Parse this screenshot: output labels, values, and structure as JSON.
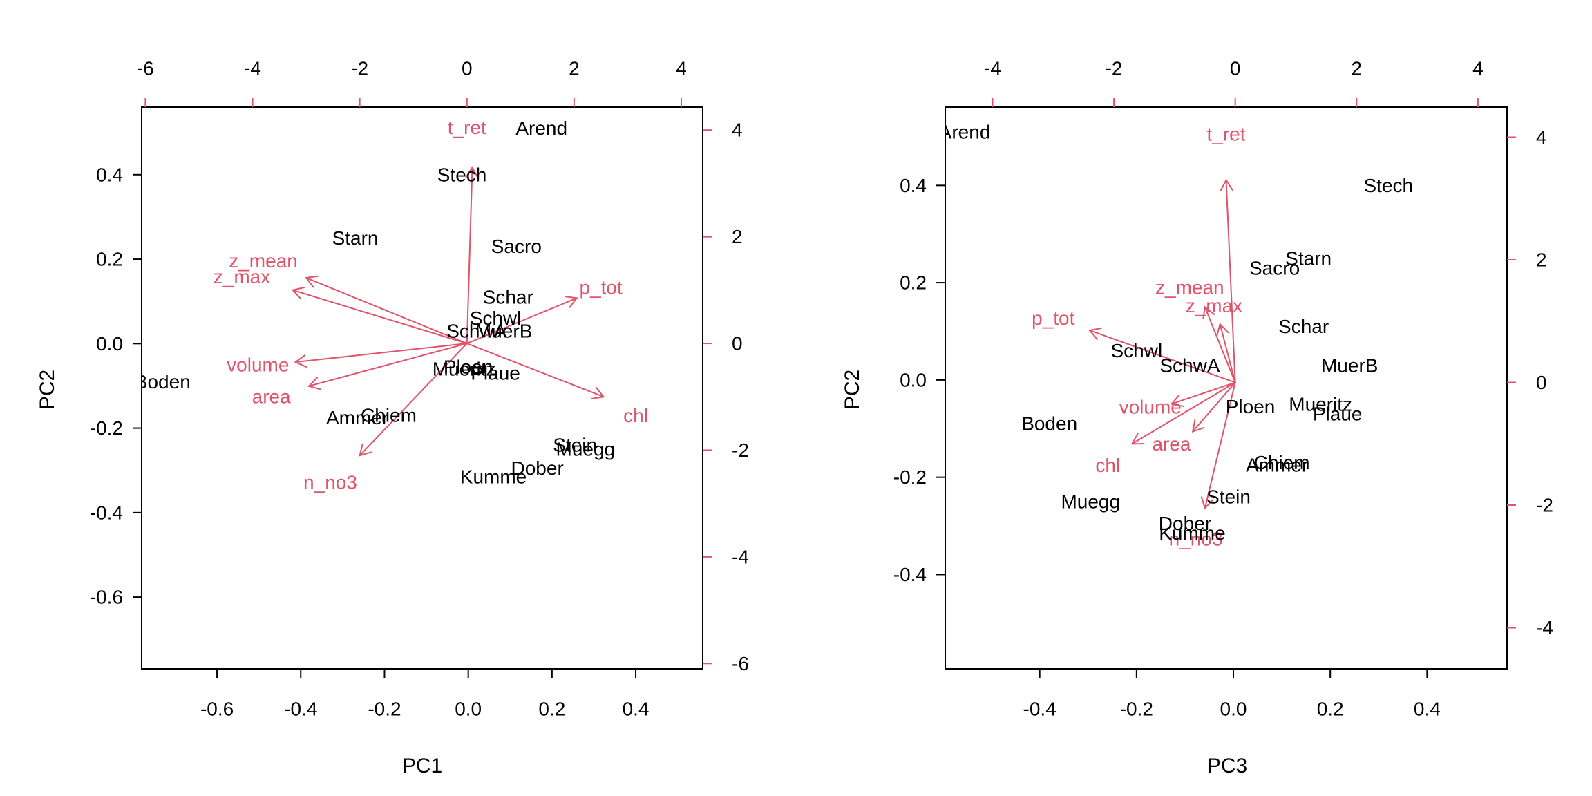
{
  "chart_data": [
    {
      "type": "scatter",
      "subtype": "biplot",
      "title": "",
      "xlabel": "PC1",
      "ylabel": "PC2",
      "xlim": [
        -0.78,
        0.56
      ],
      "ylim": [
        -0.77,
        0.56
      ],
      "xticks": [
        "-0.6",
        "-0.4",
        "-0.2",
        "0.0",
        "0.2",
        "0.4"
      ],
      "yticks": [
        "-0.6",
        "-0.4",
        "-0.2",
        "0.0",
        "0.2",
        "0.4"
      ],
      "top_axis": {
        "lim": [
          -6.07,
          4.4
        ],
        "ticks": [
          "-6",
          "-4",
          "-2",
          "0",
          "2",
          "4"
        ]
      },
      "right_axis": {
        "lim": [
          -6.1,
          4.43
        ],
        "ticks": [
          "-6",
          "-4",
          "-2",
          "0",
          "2",
          "4"
        ]
      },
      "observations": [
        {
          "label": "Arend",
          "x": 0.175,
          "y": 0.51
        },
        {
          "label": "Stech",
          "x": -0.015,
          "y": 0.4
        },
        {
          "label": "Starn",
          "x": -0.27,
          "y": 0.25
        },
        {
          "label": "Sacro",
          "x": 0.115,
          "y": 0.23
        },
        {
          "label": "Schar",
          "x": 0.095,
          "y": 0.11
        },
        {
          "label": "Schwl",
          "x": 0.065,
          "y": 0.06
        },
        {
          "label": "SchwA",
          "x": 0.02,
          "y": 0.03
        },
        {
          "label": "MuerB",
          "x": 0.085,
          "y": 0.03
        },
        {
          "label": "Ploen",
          "x": 0.0,
          "y": -0.055
        },
        {
          "label": "Mueritz",
          "x": -0.01,
          "y": -0.06
        },
        {
          "label": "Plaue",
          "x": 0.065,
          "y": -0.07
        },
        {
          "label": "Boden",
          "x": -0.73,
          "y": -0.09
        },
        {
          "label": "Chiem",
          "x": -0.19,
          "y": -0.17
        },
        {
          "label": "Ammer",
          "x": -0.265,
          "y": -0.175
        },
        {
          "label": "Stein",
          "x": 0.255,
          "y": -0.24
        },
        {
          "label": "Muegg",
          "x": 0.28,
          "y": -0.25
        },
        {
          "label": "Dober",
          "x": 0.165,
          "y": -0.295
        },
        {
          "label": "Kumme",
          "x": 0.06,
          "y": -0.315
        }
      ],
      "variables": [
        {
          "label": "t_ret",
          "x": 0.1,
          "y": 3.3,
          "lx": 0.0,
          "ly": 4.05
        },
        {
          "label": "z_mean",
          "x": -3.0,
          "y": 1.23,
          "lx": -3.8,
          "ly": 1.55
        },
        {
          "label": "z_max",
          "x": -3.25,
          "y": 1.0,
          "lx": -4.2,
          "ly": 1.25
        },
        {
          "label": "p_tot",
          "x": 2.05,
          "y": 0.85,
          "lx": 2.5,
          "ly": 1.05
        },
        {
          "label": "volume",
          "x": -3.2,
          "y": -0.35,
          "lx": -3.9,
          "ly": -0.4
        },
        {
          "label": "area",
          "x": -2.95,
          "y": -0.8,
          "lx": -3.65,
          "ly": -1.0
        },
        {
          "label": "chl",
          "x": 2.55,
          "y": -1.0,
          "lx": 3.15,
          "ly": -1.35
        },
        {
          "label": "n_no3",
          "x": -2.0,
          "y": -2.1,
          "lx": -2.55,
          "ly": -2.6
        }
      ]
    },
    {
      "type": "scatter",
      "subtype": "biplot",
      "title": "",
      "xlabel": "PC3",
      "ylabel": "PC2",
      "xlim": [
        -0.595,
        0.565
      ],
      "ylim": [
        -0.594,
        0.561
      ],
      "xticks": [
        "-0.4",
        "-0.2",
        "0.0",
        "0.2",
        "0.4"
      ],
      "yticks": [
        "-0.4",
        "-0.2",
        "0.0",
        "0.2",
        "0.4"
      ],
      "top_axis": {
        "lim": [
          -4.78,
          4.48
        ],
        "ticks": [
          "-4",
          "-2",
          "0",
          "2",
          "4"
        ]
      },
      "right_axis": {
        "lim": [
          -4.67,
          4.49
        ],
        "ticks": [
          "-4",
          "-2",
          "0",
          "2",
          "4"
        ]
      },
      "observations": [
        {
          "label": "Arend",
          "x": -0.555,
          "y": 0.51
        },
        {
          "label": "Stech",
          "x": 0.32,
          "y": 0.4
        },
        {
          "label": "Starn",
          "x": 0.155,
          "y": 0.25
        },
        {
          "label": "Sacro",
          "x": 0.085,
          "y": 0.23
        },
        {
          "label": "Schar",
          "x": 0.145,
          "y": 0.11
        },
        {
          "label": "MuerB",
          "x": 0.24,
          "y": 0.03
        },
        {
          "label": "Schwl",
          "x": -0.2,
          "y": 0.06
        },
        {
          "label": "SchwA",
          "x": -0.09,
          "y": 0.03
        },
        {
          "label": "Ploen",
          "x": 0.035,
          "y": -0.055
        },
        {
          "label": "Mueritz",
          "x": 0.18,
          "y": -0.05
        },
        {
          "label": "Plaue",
          "x": 0.215,
          "y": -0.07
        },
        {
          "label": "Boden",
          "x": -0.38,
          "y": -0.09
        },
        {
          "label": "Chiem",
          "x": 0.1,
          "y": -0.17
        },
        {
          "label": "Ammer",
          "x": 0.09,
          "y": -0.175
        },
        {
          "label": "Stein",
          "x": -0.01,
          "y": -0.24
        },
        {
          "label": "Muegg",
          "x": -0.295,
          "y": -0.25
        },
        {
          "label": "Dober",
          "x": -0.1,
          "y": -0.295
        },
        {
          "label": "Kumme",
          "x": -0.085,
          "y": -0.315
        }
      ],
      "variables": [
        {
          "label": "t_ret",
          "x": -0.15,
          "y": 3.3,
          "lx": -0.15,
          "ly": 4.05
        },
        {
          "label": "z_mean",
          "x": -0.5,
          "y": 1.23,
          "lx": -0.75,
          "ly": 1.55
        },
        {
          "label": "z_max",
          "x": -0.25,
          "y": 0.95,
          "lx": -0.35,
          "ly": 1.25
        },
        {
          "label": "p_tot",
          "x": -2.4,
          "y": 0.85,
          "lx": -3.0,
          "ly": 1.05
        },
        {
          "label": "volume",
          "x": -1.05,
          "y": -0.35,
          "lx": -1.4,
          "ly": -0.4
        },
        {
          "label": "area",
          "x": -0.7,
          "y": -0.8,
          "lx": -1.05,
          "ly": -1.0
        },
        {
          "label": "chl",
          "x": -1.7,
          "y": -1.0,
          "lx": -2.1,
          "ly": -1.35
        },
        {
          "label": "n_no3",
          "x": -0.5,
          "y": -2.05,
          "lx": -0.65,
          "ly": -2.55
        }
      ]
    }
  ],
  "colors": {
    "observations": "#000000",
    "variables": "#DF536B",
    "axes": "#000000"
  }
}
